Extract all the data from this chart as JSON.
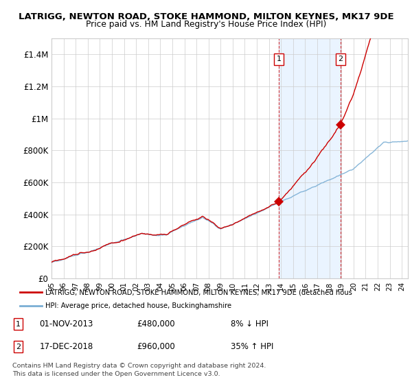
{
  "title": "LATRIGG, NEWTON ROAD, STOKE HAMMOND, MILTON KEYNES, MK17 9DE",
  "subtitle": "Price paid vs. HM Land Registry's House Price Index (HPI)",
  "legend_line1": "LATRIGG, NEWTON ROAD, STOKE HAMMOND, MILTON KEYNES, MK17 9DE (detached hous",
  "legend_line2": "HPI: Average price, detached house, Buckinghamshire",
  "sale1_date": "01-NOV-2013",
  "sale1_price": 480000,
  "sale1_label": "8% ↓ HPI",
  "sale2_date": "17-DEC-2018",
  "sale2_price": 960000,
  "sale2_label": "35% ↑ HPI",
  "footnote": "Contains HM Land Registry data © Crown copyright and database right 2024.\nThis data is licensed under the Open Government Licence v3.0.",
  "red_color": "#cc0000",
  "blue_color": "#7aaed4",
  "shade_color": "#ddeeff",
  "ylim": [
    0,
    1500000
  ],
  "yticks": [
    0,
    200000,
    400000,
    600000,
    800000,
    1000000,
    1200000,
    1400000
  ],
  "ytick_labels": [
    "£0",
    "£200K",
    "£400K",
    "£600K",
    "£800K",
    "£1M",
    "£1.2M",
    "£1.4M"
  ],
  "start_year": 1995,
  "end_year": 2024,
  "t1": 2013.833,
  "t2": 2018.917,
  "p1": 480000,
  "p2": 960000
}
